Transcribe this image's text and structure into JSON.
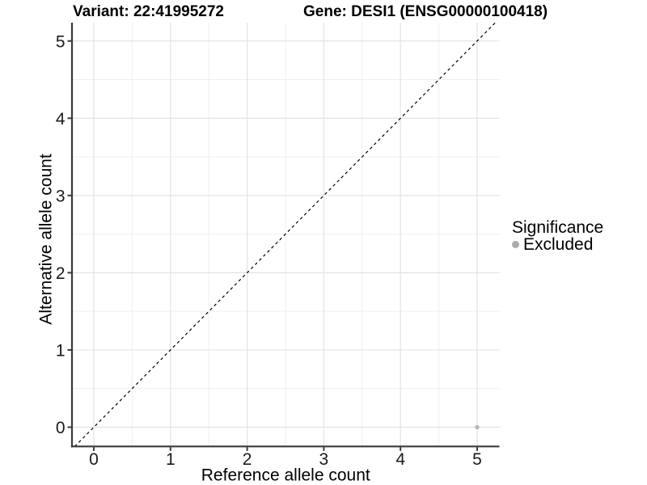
{
  "chart_data": {
    "type": "scatter",
    "titles": {
      "left": "Variant: 22:41995272",
      "right": "Gene: DESI1 (ENSG00000100418)"
    },
    "xlabel": "Reference allele count",
    "ylabel": "Alternative allele count",
    "xlim": [
      -0.29,
      5.29
    ],
    "ylim": [
      -0.25,
      5.24
    ],
    "xticks": [
      0,
      1,
      2,
      3,
      4,
      5
    ],
    "yticks": [
      0,
      1,
      2,
      3,
      4,
      5
    ],
    "grid": {
      "major": true,
      "minor": true
    },
    "legend": {
      "title": "Significance",
      "position": "right",
      "items": [
        {
          "label": "Excluded",
          "color": "#ababab"
        }
      ]
    },
    "series": [
      {
        "name": "Excluded",
        "color": "#b8b8b8",
        "points": [
          [
            5,
            0
          ]
        ]
      }
    ],
    "reference_line": {
      "kind": "identity",
      "linetype": "dashed",
      "color": "#000000"
    }
  },
  "colors": {
    "background": "#ffffff",
    "grid_major": "#e3e3e3",
    "grid_minor": "#efefef",
    "axis_line": "#3a3a3a",
    "tick_label": "#1a1a1a",
    "axis_title": "#000000"
  }
}
